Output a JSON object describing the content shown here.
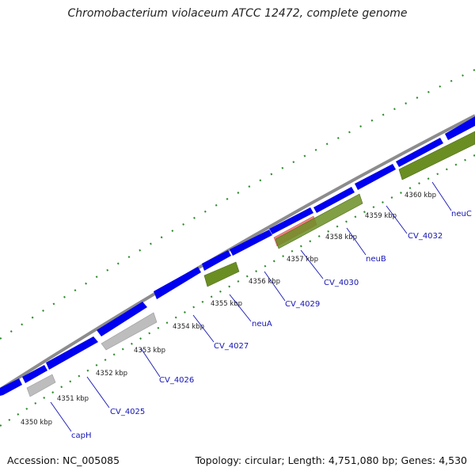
{
  "title": "Chromobacterium violaceum ATCC 12472, complete genome",
  "footer": {
    "accession": "Accession: NC_005085",
    "summary": "Topology: circular; Length: 4,751,080 bp; Genes: 4,530"
  },
  "colors": {
    "backbone": "#8c8c8c",
    "cds": "#0000f0",
    "rna_green": "#6b8e23",
    "pseudo_gray": "#bdbdbd",
    "highlight_pink": "#f08080",
    "ticks": "#2e8b2e",
    "label": "#1414b4"
  },
  "kbp_labels": [
    "4350 kbp",
    "4351 kbp",
    "4352 kbp",
    "4353 kbp",
    "4354 kbp",
    "4355 kbp",
    "4356 kbp",
    "4357 kbp",
    "4358 kbp",
    "4359 kbp",
    "4360 kbp"
  ],
  "gene_labels": [
    "capH",
    "CV_4025",
    "CV_4026",
    "CV_4027",
    "neuA",
    "CV_4029",
    "CV_4030",
    "neuB",
    "CV_4032",
    "neuC"
  ]
}
